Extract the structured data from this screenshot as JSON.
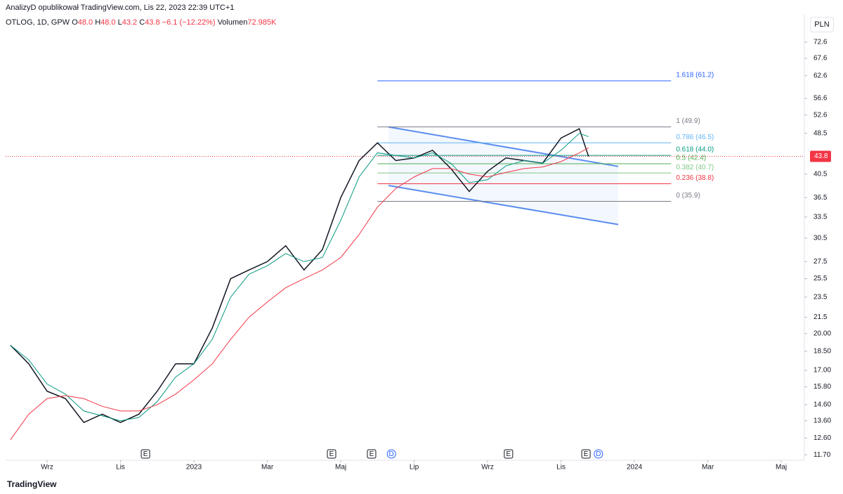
{
  "header": {
    "published": "AnalizyD opublikował TradingView.com, Lis 22, 2023 22:39 UTC+1",
    "symbol": "OTLOG, 1D, GPW",
    "ohlc": [
      {
        "key": "O",
        "value": "48.0"
      },
      {
        "key": "H",
        "value": "48.0"
      },
      {
        "key": "L",
        "value": "43.2"
      },
      {
        "key": "C",
        "value": "43.8"
      }
    ],
    "change": "−6.1 (−12.22%)",
    "volume_key": "Volumen",
    "volume": "72.985K"
  },
  "currency": "PLN",
  "footer": "TradingView",
  "chart_data": {
    "type": "line",
    "log_scale": true,
    "ylim": [
      11.42,
      79.2
    ],
    "xlim": [
      -5.13,
      16.63
    ],
    "yticks": [
      72.6,
      67.6,
      62.6,
      56.6,
      52.6,
      48.5,
      40.5,
      36.5,
      33.5,
      30.5,
      27.5,
      25.5,
      23.5,
      21.5,
      {
        "value": 20,
        "label": "20.00"
      },
      {
        "value": 18.5,
        "label": "18.50"
      },
      {
        "value": 17,
        "label": "17.00"
      },
      {
        "value": 15.8,
        "label": "15.80"
      },
      {
        "value": 14.6,
        "label": "14.60"
      },
      {
        "value": 13.6,
        "label": "13.60"
      },
      {
        "value": 12.6,
        "label": "12.60"
      },
      {
        "value": 11.7,
        "label": "11.70"
      }
    ],
    "xticks": [
      {
        "value": -4,
        "label": "Wrz"
      },
      {
        "value": -2,
        "label": "Lis"
      },
      {
        "value": 0,
        "label": "2023"
      },
      {
        "value": 2,
        "label": "Mar"
      },
      {
        "value": 4,
        "label": "Maj"
      },
      {
        "value": 6,
        "label": "Lip"
      },
      {
        "value": 8,
        "label": "Wrz"
      },
      {
        "value": 10,
        "label": "Lis"
      },
      {
        "value": 12,
        "label": "2024"
      },
      {
        "value": 14,
        "label": "Mar"
      },
      {
        "value": 16,
        "label": "Maj"
      }
    ],
    "x": [
      -5,
      -4.5,
      -4,
      -3.5,
      -3,
      -2.5,
      -2,
      -1.5,
      -1,
      -0.5,
      0,
      0.5,
      1,
      1.5,
      2,
      2.5,
      3,
      3.5,
      4,
      4.5,
      5,
      5.5,
      6,
      6.5,
      7,
      7.5,
      8,
      8.5,
      9,
      9.5,
      10,
      10.5,
      10.75
    ],
    "series": [
      {
        "color": "#131722",
        "values": [
          19,
          17.5,
          15.5,
          15,
          13.5,
          14,
          13.5,
          14,
          15.5,
          17.5,
          17.5,
          20.5,
          25.5,
          26.5,
          27.5,
          29.5,
          26.5,
          29,
          36.5,
          43,
          46.5,
          43,
          43.5,
          45,
          41.5,
          37.5,
          41,
          43.5,
          43,
          42.5,
          47.5,
          49.5,
          43.8
        ]
      },
      {
        "color": "#089981",
        "values": [
          19,
          17.8,
          16,
          15.3,
          14.2,
          13.9,
          13.6,
          13.8,
          14.8,
          16.5,
          17.5,
          19.5,
          23.5,
          26,
          27,
          28.5,
          27.5,
          28,
          33,
          40,
          44.5,
          44,
          43.5,
          44.5,
          42.5,
          39,
          39.5,
          42,
          43,
          42.5,
          45,
          48.5,
          47.8
        ]
      },
      {
        "color": "#f23645",
        "values": [
          12.5,
          14,
          15,
          15.2,
          15,
          14.5,
          14.2,
          14.2,
          14.6,
          15.3,
          16.3,
          17.5,
          19.5,
          21.5,
          23,
          24.5,
          25.5,
          26.5,
          28,
          31,
          35,
          38,
          40,
          41.5,
          41.5,
          40.5,
          40,
          40.8,
          41.5,
          41.8,
          42.8,
          44.5,
          45.5
        ]
      }
    ],
    "last_price": 43.8,
    "last_price_color": "#f23645",
    "fib_x": [
      5.0,
      13.0
    ],
    "fib_levels": [
      {
        "value": 61.2,
        "label": "1.618 (61.2)",
        "color": "#2962ff"
      },
      {
        "value": 49.9,
        "label": "1 (49.9)",
        "color": "#787b86"
      },
      {
        "value": 46.5,
        "label": "0.786 (46.5)",
        "color": "#64b5f6"
      },
      {
        "value": 44.0,
        "label": "0.618 (44.0)",
        "color": "#089981"
      },
      {
        "value": 42.4,
        "label": "0.5 (42.4)",
        "color": "#4caf50"
      },
      {
        "value": 40.7,
        "label": "0.382 (40.7)",
        "color": "#81c784"
      },
      {
        "value": 38.8,
        "label": "0.236 (38.8)",
        "color": "#f23645"
      },
      {
        "value": 35.9,
        "label": "0 (35.9)",
        "color": "#787b86"
      }
    ],
    "channel": {
      "color": "#5b8def",
      "x": [
        5.3,
        11.56
      ],
      "upper": [
        49.9,
        41.9
      ],
      "lower": [
        38.5,
        32.4
      ]
    },
    "events": [
      {
        "x": -1.32,
        "label": "E"
      },
      {
        "x": 3.75,
        "label": "E"
      },
      {
        "x": 4.84,
        "label": "E"
      },
      {
        "x": 5.38,
        "label": "D"
      },
      {
        "x": 8.57,
        "label": "E"
      },
      {
        "x": 10.68,
        "label": "E"
      },
      {
        "x": 11.02,
        "label": "D"
      }
    ]
  }
}
